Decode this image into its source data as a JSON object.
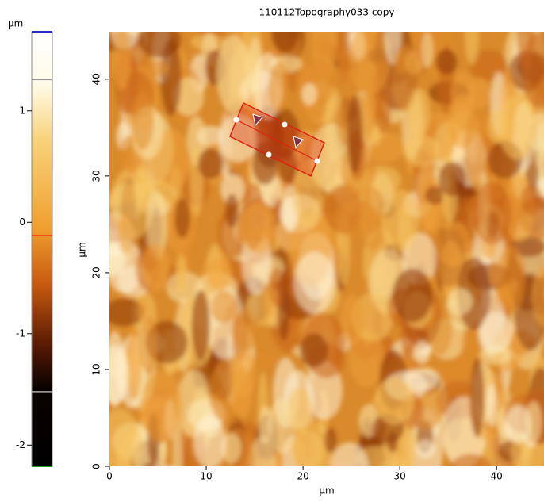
{
  "chart_data": {
    "type": "image",
    "title": "110112Topography033 copy",
    "xlabel": "µm",
    "ylabel": "µm",
    "colorbar_label": "µm",
    "xlim": [
      0,
      44.9
    ],
    "ylim": [
      0,
      44.9
    ],
    "xticks": [
      0,
      10,
      20,
      30,
      40
    ],
    "yticks": [
      0,
      10,
      20,
      30,
      40
    ],
    "clim": [
      -2.19,
      1.71
    ],
    "cticks": [
      -2,
      -1,
      0,
      1
    ],
    "colorbar_markers": [
      {
        "value": 1.28,
        "color": "#999999"
      },
      {
        "value": -0.12,
        "color": "#ff2000"
      },
      {
        "value": -1.52,
        "color": "#aaaaaa"
      }
    ]
  }
}
